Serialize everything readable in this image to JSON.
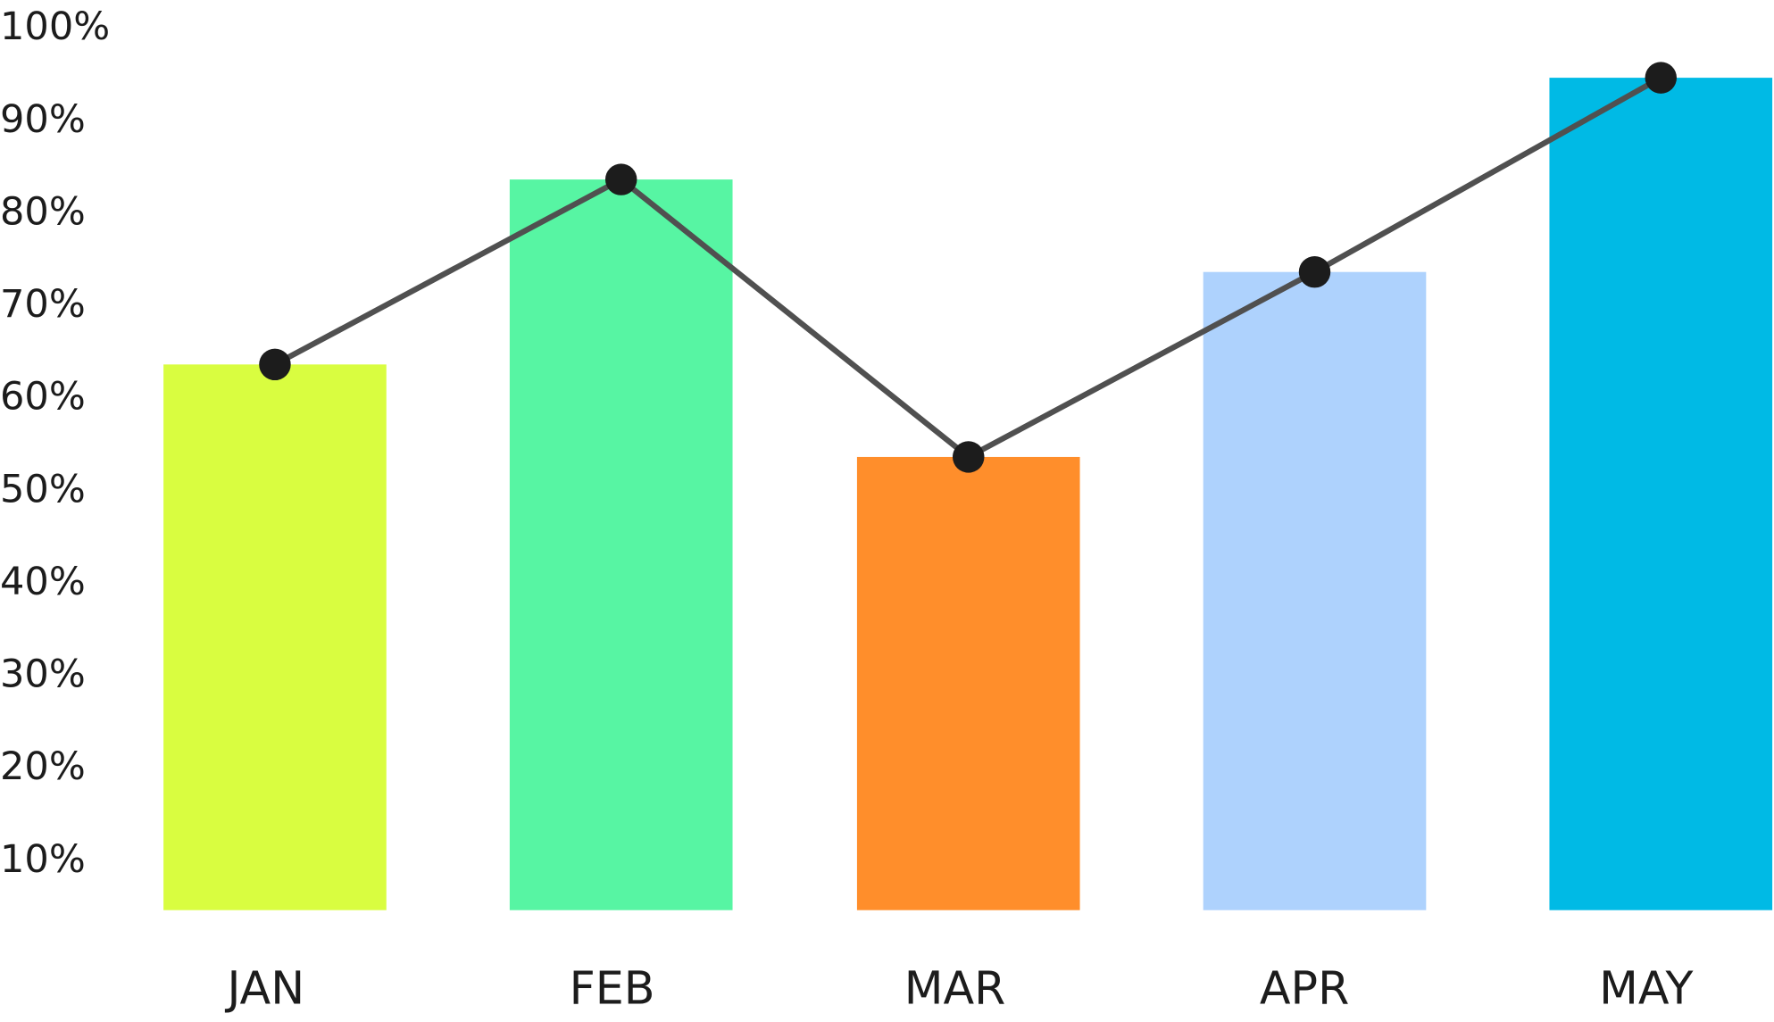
{
  "chart_data": {
    "type": "bar",
    "categories": [
      "JAN",
      "FEB",
      "MAR",
      "APR",
      "MAY"
    ],
    "values": [
      64,
      84,
      54,
      74,
      95
    ],
    "bar_colors": [
      "#d9fd40",
      "#57f5a3",
      "#ff8e2b",
      "#aed2fd",
      "#00bae5"
    ],
    "line_overlay": {
      "values": [
        64,
        84,
        54,
        74,
        95
      ],
      "color": "#505050",
      "marker_color": "#1c1c1c"
    },
    "yticks": [
      "10%",
      "20%",
      "30%",
      "40%",
      "50%",
      "60%",
      "70%",
      "80%",
      "90%",
      "100%"
    ],
    "ytick_values": [
      10,
      20,
      30,
      40,
      50,
      60,
      70,
      80,
      90,
      100
    ],
    "ylim": [
      5,
      100
    ],
    "grid": false,
    "legend": "none",
    "title": "",
    "xlabel": "",
    "ylabel": ""
  }
}
